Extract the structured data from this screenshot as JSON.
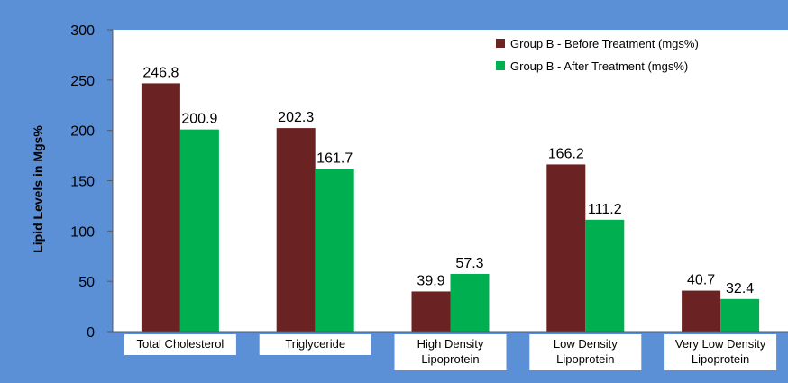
{
  "chart_data": {
    "type": "bar",
    "title": "",
    "xlabel": "",
    "ylabel": "Lipid Levels in Mgs%",
    "ylim": [
      0,
      300
    ],
    "yticks": [
      0,
      50,
      100,
      150,
      200,
      250,
      300
    ],
    "grid": false,
    "legend_position": "top-right",
    "categories": [
      [
        "Total Cholesterol"
      ],
      [
        "Triglyceride"
      ],
      [
        "High Density",
        "Lipoprotein"
      ],
      [
        "Low Density",
        "Lipoprotein"
      ],
      [
        "Very Low Density",
        "Lipoprotein"
      ]
    ],
    "series": [
      {
        "name": "Group B - Before Treatment (mgs%)",
        "color": "#6B2222",
        "values": [
          246.8,
          202.3,
          39.9,
          166.2,
          40.7
        ],
        "labels": [
          "246.8",
          "202.3",
          "39.9",
          "166.2",
          "40.7"
        ]
      },
      {
        "name": "Group B - After Treatment (mgs%)",
        "color": "#00B050",
        "values": [
          200.9,
          161.7,
          57.3,
          111.2,
          32.4
        ],
        "labels": [
          "200.9",
          "161.7",
          "57.3",
          "111.2",
          "32.4"
        ]
      }
    ],
    "colors": {
      "frame_background": "#5B8FD6",
      "plot_background": "#FFFFFF",
      "category_label_background": "#FFFFFF"
    }
  }
}
